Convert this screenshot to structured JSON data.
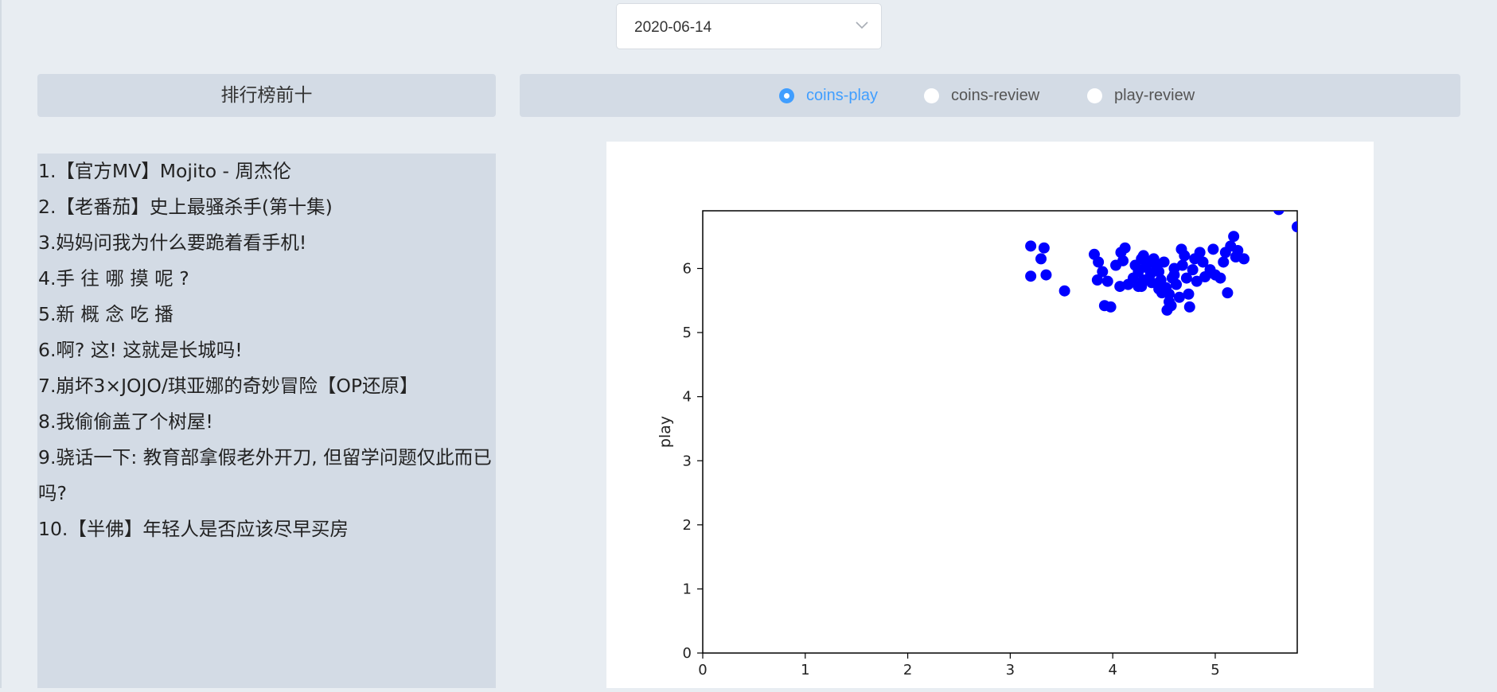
{
  "date_select": {
    "value": "2020-06-14"
  },
  "rank_panel": {
    "title": "排行榜前十",
    "items": [
      "1.【官方MV】Mojito - 周杰伦",
      "2.【老番茄】史上最骚杀手(第十集)",
      "3.妈妈问我为什么要跪着看手机!",
      "4.手 往 哪 摸 呢 ?",
      "5.新 概 念 吃 播",
      "6.啊? 这! 这就是长城吗!",
      "7.崩坏3×JOJO/琪亚娜的奇妙冒险【OP还原】",
      "8.我偷偷盖了个树屋!",
      "9.骁话一下: 教育部拿假老外开刀, 但留学问题仅此而已吗?",
      "10.【半佛】年轻人是否应该尽早买房"
    ]
  },
  "chart_options": {
    "selected": "coins-play",
    "options": [
      "coins-play",
      "coins-review",
      "play-review"
    ]
  },
  "chart_data": {
    "type": "scatter",
    "ylabel": "play",
    "xlabel": "",
    "xlim": [
      0,
      5.8
    ],
    "ylim": [
      0,
      6.9
    ],
    "xticks": [
      "0",
      "1",
      "2",
      "3",
      "4",
      "5"
    ],
    "yticks": [
      "0",
      "1",
      "2",
      "3",
      "4",
      "5",
      "6"
    ],
    "color": "#0000ff",
    "points": [
      [
        3.2,
        6.35
      ],
      [
        3.33,
        6.32
      ],
      [
        3.3,
        6.15
      ],
      [
        3.2,
        5.88
      ],
      [
        3.35,
        5.9
      ],
      [
        3.53,
        5.65
      ],
      [
        3.82,
        6.22
      ],
      [
        3.86,
        6.1
      ],
      [
        3.9,
        5.95
      ],
      [
        3.85,
        5.82
      ],
      [
        3.95,
        5.8
      ],
      [
        3.92,
        5.42
      ],
      [
        3.98,
        5.4
      ],
      [
        4.03,
        6.05
      ],
      [
        4.08,
        6.25
      ],
      [
        4.12,
        6.32
      ],
      [
        4.1,
        6.12
      ],
      [
        4.07,
        5.72
      ],
      [
        4.15,
        5.75
      ],
      [
        4.2,
        5.85
      ],
      [
        4.22,
        6.05
      ],
      [
        4.25,
        5.95
      ],
      [
        4.28,
        6.15
      ],
      [
        4.3,
        6.2
      ],
      [
        4.32,
        6.02
      ],
      [
        4.3,
        5.82
      ],
      [
        4.28,
        5.72
      ],
      [
        4.35,
        6.1
      ],
      [
        4.37,
        5.92
      ],
      [
        4.4,
        6.15
      ],
      [
        4.38,
        5.78
      ],
      [
        4.42,
        6.05
      ],
      [
        4.45,
        5.95
      ],
      [
        4.47,
        5.82
      ],
      [
        4.5,
        6.1
      ],
      [
        4.52,
        5.7
      ],
      [
        4.48,
        5.62
      ],
      [
        4.55,
        5.48
      ],
      [
        4.53,
        5.35
      ],
      [
        4.57,
        5.42
      ],
      [
        4.55,
        5.6
      ],
      [
        4.58,
        5.85
      ],
      [
        4.6,
        5.9
      ],
      [
        4.62,
        5.75
      ],
      [
        4.65,
        5.55
      ],
      [
        4.67,
        6.3
      ],
      [
        4.7,
        6.2
      ],
      [
        4.68,
        6.05
      ],
      [
        4.72,
        5.85
      ],
      [
        4.74,
        5.6
      ],
      [
        4.75,
        5.4
      ],
      [
        4.78,
        5.98
      ],
      [
        4.8,
        6.15
      ],
      [
        4.82,
        5.8
      ],
      [
        4.85,
        6.25
      ],
      [
        4.88,
        6.1
      ],
      [
        4.9,
        5.87
      ],
      [
        4.95,
        5.98
      ],
      [
        4.98,
        6.3
      ],
      [
        5.0,
        5.9
      ],
      [
        5.05,
        5.85
      ],
      [
        5.08,
        6.1
      ],
      [
        5.1,
        6.25
      ],
      [
        5.12,
        5.62
      ],
      [
        5.15,
        6.35
      ],
      [
        5.18,
        6.5
      ],
      [
        5.2,
        6.18
      ],
      [
        5.22,
        6.28
      ],
      [
        5.28,
        6.15
      ],
      [
        4.25,
        5.72
      ],
      [
        4.45,
        5.68
      ],
      [
        4.6,
        6.0
      ],
      [
        5.62,
        6.92
      ],
      [
        5.8,
        6.65
      ]
    ]
  }
}
